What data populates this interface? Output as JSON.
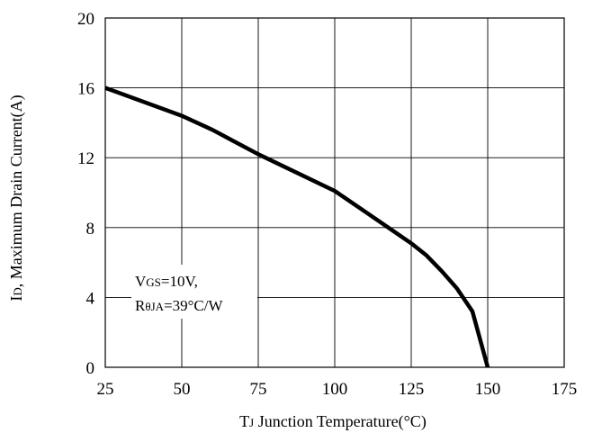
{
  "chart_data": {
    "type": "line",
    "title": "",
    "xlabel": {
      "main": "T",
      "sub": "J",
      "rest": " Junction Temperature(",
      "unit": "°C",
      "close": ")"
    },
    "ylabel": {
      "main": "I",
      "sub": "D",
      "rest": ", Maximum Drain Current(A)"
    },
    "xlim": [
      25,
      175
    ],
    "ylim": [
      0,
      20
    ],
    "xticks": [
      25,
      50,
      75,
      100,
      125,
      150,
      175
    ],
    "yticks": [
      0,
      4,
      8,
      12,
      16,
      20
    ],
    "grid": true,
    "legend": "none",
    "series": [
      {
        "color": "#000000",
        "x": [
          25,
          50,
          60,
          75,
          100,
          110,
          125,
          130,
          135,
          140,
          145,
          150
        ],
        "y": [
          16.0,
          14.4,
          13.6,
          12.2,
          10.1,
          8.9,
          7.1,
          6.4,
          5.5,
          4.5,
          3.2,
          0.0
        ]
      }
    ],
    "annotations": [
      {
        "lines": [
          {
            "main": "V",
            "sub": "GS",
            "rest": "=10V,"
          },
          {
            "main": "R",
            "sub": "θJA",
            "rest": "=39°C/W"
          }
        ]
      }
    ]
  }
}
